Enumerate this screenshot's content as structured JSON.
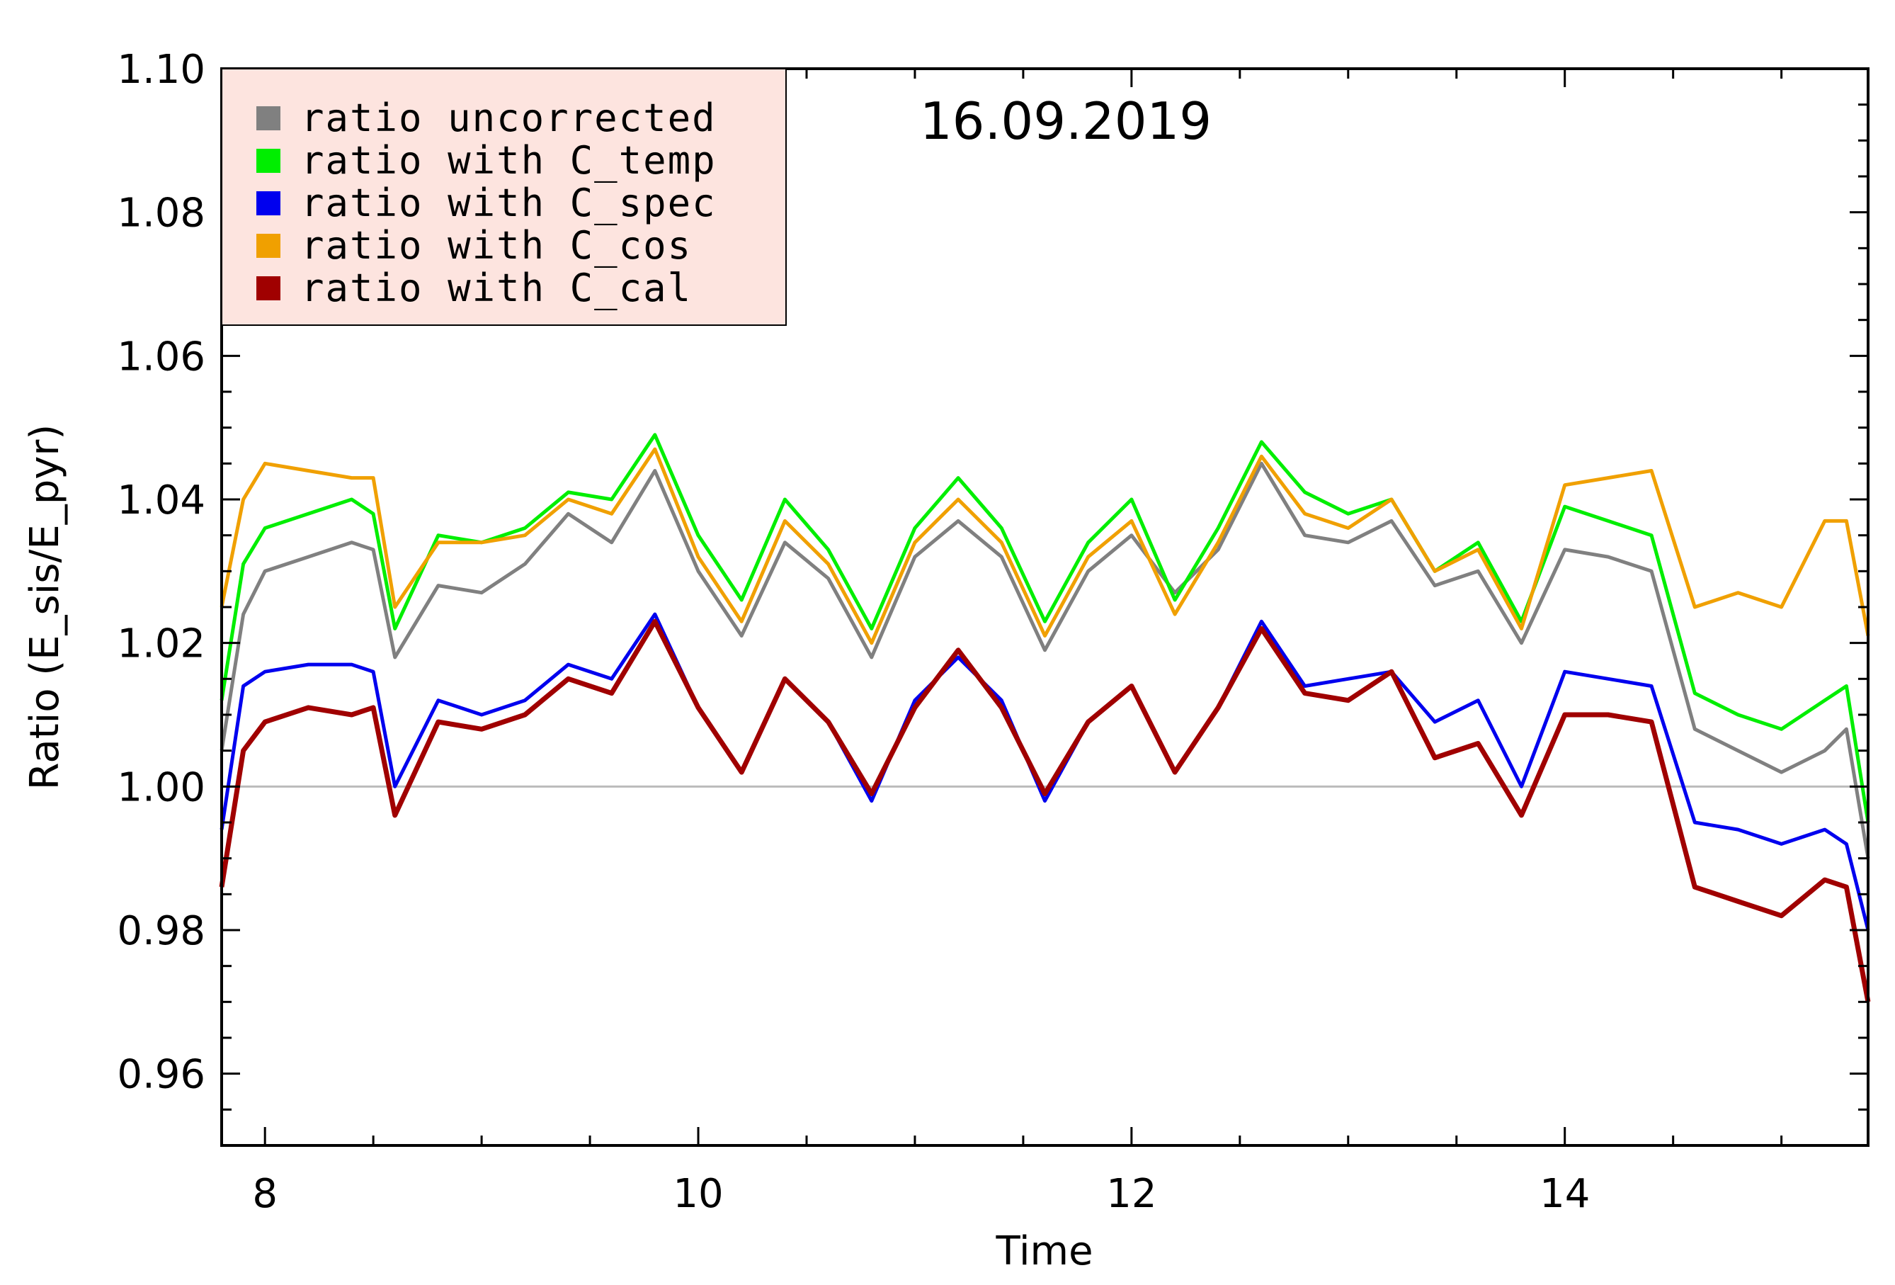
{
  "chart_data": {
    "type": "line",
    "title": "",
    "annotation": "16.09.2019",
    "xlabel": "Time",
    "ylabel": "Ratio (E_sis/E_pyr)",
    "xlim": [
      7.8,
      15.4
    ],
    "ylim": [
      0.95,
      1.1
    ],
    "xticks": [
      8,
      10,
      12,
      14
    ],
    "xtick_labels": [
      "8",
      "10",
      "12",
      "14"
    ],
    "yticks": [
      0.96,
      0.98,
      1.0,
      1.02,
      1.04,
      1.06,
      1.08,
      1.1
    ],
    "ytick_labels": [
      "0.96",
      "0.98",
      "1.00",
      "1.02",
      "1.04",
      "1.06",
      "1.08",
      "1.10"
    ],
    "reference_line": {
      "y": 1.0,
      "color": "#bbbbbb"
    },
    "legend": {
      "position": "top-left",
      "background": "#fde4df"
    },
    "x": [
      7.8,
      7.9,
      8.0,
      8.2,
      8.4,
      8.5,
      8.6,
      8.8,
      9.0,
      9.2,
      9.4,
      9.6,
      9.8,
      10.0,
      10.2,
      10.4,
      10.6,
      10.8,
      11.0,
      11.2,
      11.4,
      11.6,
      11.8,
      12.0,
      12.2,
      12.4,
      12.6,
      12.8,
      13.0,
      13.2,
      13.4,
      13.6,
      13.8,
      14.0,
      14.2,
      14.4,
      14.6,
      14.8,
      15.0,
      15.2,
      15.3,
      15.4
    ],
    "series": [
      {
        "name": "ratio uncorrected",
        "color": "#808080",
        "values": [
          1.005,
          1.024,
          1.03,
          1.032,
          1.034,
          1.033,
          1.018,
          1.028,
          1.027,
          1.031,
          1.038,
          1.034,
          1.044,
          1.03,
          1.021,
          1.034,
          1.029,
          1.018,
          1.032,
          1.037,
          1.032,
          1.019,
          1.03,
          1.035,
          1.027,
          1.033,
          1.045,
          1.035,
          1.034,
          1.037,
          1.028,
          1.03,
          1.02,
          1.033,
          1.032,
          1.03,
          1.008,
          1.005,
          1.002,
          1.005,
          1.008,
          0.99
        ]
      },
      {
        "name": "ratio with C_temp",
        "color": "#00ee00",
        "values": [
          1.012,
          1.031,
          1.036,
          1.038,
          1.04,
          1.038,
          1.022,
          1.035,
          1.034,
          1.036,
          1.041,
          1.04,
          1.049,
          1.035,
          1.026,
          1.04,
          1.033,
          1.022,
          1.036,
          1.043,
          1.036,
          1.023,
          1.034,
          1.04,
          1.026,
          1.036,
          1.048,
          1.041,
          1.038,
          1.04,
          1.03,
          1.034,
          1.023,
          1.039,
          1.037,
          1.035,
          1.013,
          1.01,
          1.008,
          1.012,
          1.014,
          0.995
        ]
      },
      {
        "name": "ratio with C_spec",
        "color": "#0000ee",
        "values": [
          0.994,
          1.014,
          1.016,
          1.017,
          1.017,
          1.016,
          1.0,
          1.012,
          1.01,
          1.012,
          1.017,
          1.015,
          1.024,
          1.011,
          1.002,
          1.015,
          1.009,
          0.998,
          1.012,
          1.018,
          1.012,
          0.998,
          1.009,
          1.014,
          1.002,
          1.011,
          1.023,
          1.014,
          1.015,
          1.016,
          1.009,
          1.012,
          1.0,
          1.016,
          1.015,
          1.014,
          0.995,
          0.994,
          0.992,
          0.994,
          0.992,
          0.98
        ]
      },
      {
        "name": "ratio with C_cos",
        "color": "#f0a000",
        "values": [
          1.025,
          1.04,
          1.045,
          1.044,
          1.043,
          1.043,
          1.025,
          1.034,
          1.034,
          1.035,
          1.04,
          1.038,
          1.047,
          1.032,
          1.023,
          1.037,
          1.031,
          1.02,
          1.034,
          1.04,
          1.034,
          1.021,
          1.032,
          1.037,
          1.024,
          1.034,
          1.046,
          1.038,
          1.036,
          1.04,
          1.03,
          1.033,
          1.022,
          1.042,
          1.043,
          1.044,
          1.025,
          1.027,
          1.025,
          1.037,
          1.037,
          1.021
        ]
      },
      {
        "name": "ratio with C_cal",
        "color": "#a00000",
        "values": [
          0.986,
          1.005,
          1.009,
          1.011,
          1.01,
          1.011,
          0.996,
          1.009,
          1.008,
          1.01,
          1.015,
          1.013,
          1.023,
          1.011,
          1.002,
          1.015,
          1.009,
          0.999,
          1.011,
          1.019,
          1.011,
          0.999,
          1.009,
          1.014,
          1.002,
          1.011,
          1.022,
          1.013,
          1.012,
          1.016,
          1.004,
          1.006,
          0.996,
          1.01,
          1.01,
          1.009,
          0.986,
          0.984,
          0.982,
          0.987,
          0.986,
          0.97
        ]
      }
    ]
  }
}
